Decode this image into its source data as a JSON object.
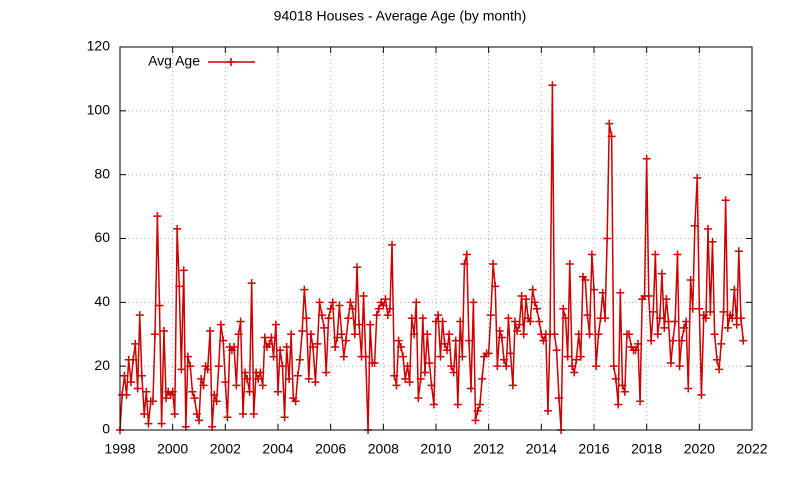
{
  "chart_data": {
    "type": "line",
    "title": "94018 Houses - Average Age (by month)",
    "x": [
      1998,
      1998.08,
      1998.17,
      1998.25,
      1998.33,
      1998.42,
      1998.5,
      1998.58,
      1998.67,
      1998.75,
      1998.83,
      1998.92,
      1999,
      1999.08,
      1999.17,
      1999.25,
      1999.33,
      1999.42,
      1999.5,
      1999.58,
      1999.67,
      1999.75,
      1999.83,
      1999.92,
      2000,
      2000.08,
      2000.17,
      2000.25,
      2000.33,
      2000.42,
      2000.5,
      2000.58,
      2000.67,
      2000.75,
      2000.83,
      2000.92,
      2001,
      2001.08,
      2001.17,
      2001.25,
      2001.33,
      2001.42,
      2001.5,
      2001.58,
      2001.67,
      2001.75,
      2001.83,
      2001.92,
      2002,
      2002.08,
      2002.17,
      2002.25,
      2002.33,
      2002.42,
      2002.5,
      2002.58,
      2002.67,
      2002.75,
      2002.83,
      2002.92,
      2003,
      2003.08,
      2003.17,
      2003.25,
      2003.33,
      2003.42,
      2003.5,
      2003.58,
      2003.67,
      2003.75,
      2003.83,
      2003.92,
      2004,
      2004.08,
      2004.17,
      2004.25,
      2004.33,
      2004.42,
      2004.5,
      2004.58,
      2004.67,
      2004.75,
      2004.83,
      2004.92,
      2005,
      2005.08,
      2005.17,
      2005.25,
      2005.33,
      2005.42,
      2005.5,
      2005.58,
      2005.67,
      2005.75,
      2005.83,
      2005.92,
      2006,
      2006.08,
      2006.17,
      2006.25,
      2006.33,
      2006.42,
      2006.5,
      2006.58,
      2006.67,
      2006.75,
      2006.83,
      2006.92,
      2007,
      2007.08,
      2007.17,
      2007.25,
      2007.33,
      2007.42,
      2007.5,
      2007.58,
      2007.67,
      2007.75,
      2007.83,
      2007.92,
      2008,
      2008.08,
      2008.17,
      2008.25,
      2008.33,
      2008.42,
      2008.5,
      2008.58,
      2008.67,
      2008.75,
      2008.83,
      2008.92,
      2009,
      2009.08,
      2009.17,
      2009.25,
      2009.33,
      2009.42,
      2009.5,
      2009.58,
      2009.67,
      2009.75,
      2009.83,
      2009.92,
      2010,
      2010.08,
      2010.17,
      2010.25,
      2010.33,
      2010.42,
      2010.5,
      2010.58,
      2010.67,
      2010.75,
      2010.83,
      2010.92,
      2011,
      2011.08,
      2011.17,
      2011.25,
      2011.33,
      2011.42,
      2011.5,
      2011.58,
      2011.67,
      2011.75,
      2011.83,
      2011.92,
      2012,
      2012.08,
      2012.17,
      2012.25,
      2012.33,
      2012.42,
      2012.5,
      2012.58,
      2012.67,
      2012.75,
      2012.83,
      2012.92,
      2013,
      2013.08,
      2013.17,
      2013.25,
      2013.33,
      2013.42,
      2013.5,
      2013.58,
      2013.67,
      2013.75,
      2013.83,
      2013.92,
      2014,
      2014.08,
      2014.17,
      2014.25,
      2014.33,
      2014.42,
      2014.5,
      2014.58,
      2014.67,
      2014.75,
      2014.83,
      2014.92,
      2015,
      2015.08,
      2015.17,
      2015.25,
      2015.33,
      2015.42,
      2015.5,
      2015.58,
      2015.67,
      2015.75,
      2015.83,
      2015.92,
      2016,
      2016.08,
      2016.17,
      2016.25,
      2016.33,
      2016.42,
      2016.5,
      2016.58,
      2016.67,
      2016.75,
      2016.83,
      2016.92,
      2017,
      2017.08,
      2017.17,
      2017.25,
      2017.33,
      2017.42,
      2017.5,
      2017.58,
      2017.67,
      2017.75,
      2017.83,
      2017.92,
      2018,
      2018.08,
      2018.17,
      2018.25,
      2018.33,
      2018.42,
      2018.5,
      2018.58,
      2018.67,
      2018.75,
      2018.83,
      2018.92,
      2019,
      2019.08,
      2019.17,
      2019.25,
      2019.33,
      2019.42,
      2019.5,
      2019.58,
      2019.67,
      2019.75,
      2019.83,
      2019.92,
      2020,
      2020.08,
      2020.17,
      2020.25,
      2020.33,
      2020.42,
      2020.5,
      2020.58,
      2020.67,
      2020.75,
      2020.83,
      2020.92,
      2021,
      2021.08,
      2021.17,
      2021.25,
      2021.33,
      2021.42,
      2021.5,
      2021.58,
      2021.67
    ],
    "series": [
      {
        "name": "Avg Age",
        "color": "#cc0000",
        "values": [
          0,
          11,
          17,
          11,
          22,
          15,
          22,
          27,
          13,
          36,
          17,
          5,
          12,
          2,
          9,
          9,
          30,
          67,
          39,
          2,
          31,
          10,
          12,
          11,
          12,
          5,
          63,
          45,
          19,
          50,
          1,
          23,
          20,
          12,
          10,
          5,
          3,
          16,
          14,
          20,
          19,
          31,
          1,
          11,
          9,
          20,
          33,
          28,
          15,
          4,
          26,
          25,
          26,
          14,
          30,
          34,
          5,
          18,
          16,
          12,
          46,
          5,
          18,
          16,
          18,
          14,
          29,
          26,
          27,
          29,
          23,
          33,
          12,
          25,
          20,
          4,
          26,
          16,
          30,
          10,
          9,
          17,
          22,
          31,
          44,
          35,
          16,
          30,
          26,
          15,
          27,
          40,
          36,
          32,
          18,
          35,
          38,
          40,
          26,
          29,
          39,
          30,
          23,
          28,
          35,
          40,
          38,
          30,
          51,
          33,
          23,
          42,
          23,
          0,
          33,
          21,
          21,
          36,
          38,
          40,
          39,
          41,
          36,
          38,
          58,
          17,
          14,
          28,
          26,
          23,
          16,
          20,
          15,
          35,
          30,
          40,
          10,
          16,
          35,
          18,
          30,
          21,
          14,
          8,
          34,
          36,
          23,
          34,
          27,
          25,
          30,
          20,
          18,
          28,
          8,
          34,
          23,
          52,
          55,
          28,
          13,
          40,
          3,
          6,
          8,
          16,
          23,
          24,
          24,
          36,
          52,
          45,
          20,
          31,
          29,
          22,
          20,
          35,
          24,
          14,
          34,
          31,
          33,
          42,
          30,
          41,
          35,
          34,
          44,
          40,
          38,
          34,
          30,
          28,
          30,
          6,
          30,
          108,
          30,
          25,
          10,
          0,
          38,
          35,
          23,
          52,
          20,
          18,
          22,
          30,
          23,
          48,
          47,
          36,
          30,
          55,
          44,
          20,
          30,
          35,
          43,
          35,
          60,
          96,
          92,
          20,
          16,
          8,
          43,
          14,
          12,
          30,
          30,
          26,
          25,
          25,
          27,
          9,
          41,
          42,
          85,
          42,
          28,
          37,
          55,
          30,
          35,
          49,
          32,
          41,
          34,
          21,
          28,
          34,
          55,
          20,
          28,
          32,
          34,
          13,
          47,
          38,
          64,
          79,
          38,
          11,
          36,
          35,
          63,
          37,
          59,
          30,
          22,
          19,
          27,
          37,
          72,
          32,
          36,
          35,
          44,
          33,
          56,
          35,
          28
        ]
      }
    ],
    "xlim": [
      1998,
      2022
    ],
    "xticks": [
      1998,
      2000,
      2002,
      2004,
      2006,
      2008,
      2010,
      2012,
      2014,
      2016,
      2018,
      2020,
      2022
    ],
    "ylim": [
      0,
      120
    ],
    "yticks": [
      0,
      20,
      40,
      60,
      80,
      100,
      120
    ],
    "grid": true,
    "legend": "top-left"
  }
}
